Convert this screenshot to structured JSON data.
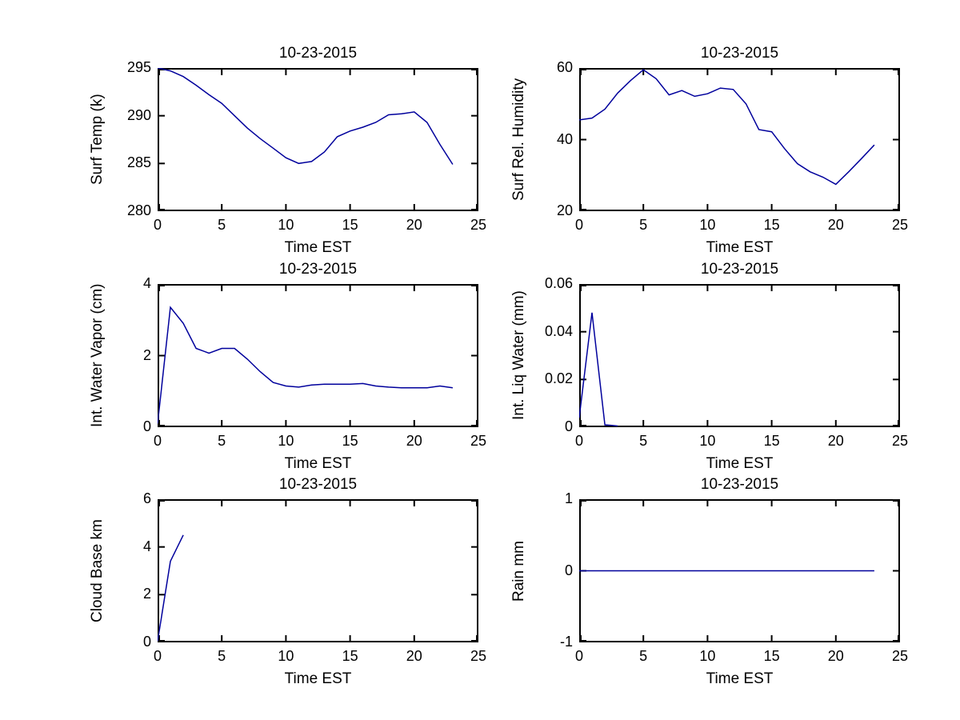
{
  "figure": {
    "background": "#ffffff",
    "line_color": "#00009c",
    "axis_color": "#000000",
    "date": "10-23-2015"
  },
  "chart_data": [
    {
      "type": "line",
      "title": "10-23-2015",
      "xlabel": "Time EST",
      "ylabel": "Surf Temp (k)",
      "xlim": [
        0,
        25
      ],
      "ylim": [
        280,
        295
      ],
      "xticks": [
        0,
        5,
        10,
        15,
        20,
        25
      ],
      "yticks": [
        280,
        285,
        290,
        295
      ],
      "grid": false,
      "legend": null,
      "x": [
        0,
        1,
        2,
        3,
        4,
        5,
        6,
        7,
        8,
        9,
        10,
        11,
        12,
        13,
        14,
        15,
        16,
        17,
        18,
        19,
        20,
        21,
        22,
        23
      ],
      "y": [
        295.0,
        294.7,
        294.1,
        293.2,
        292.2,
        291.3,
        290.0,
        288.7,
        287.6,
        286.6,
        285.6,
        285.0,
        285.2,
        286.2,
        287.8,
        288.4,
        288.8,
        289.3,
        290.1,
        290.2,
        290.4,
        289.3,
        287.0,
        284.9
      ]
    },
    {
      "type": "line",
      "title": "10-23-2015",
      "xlabel": "Time EST",
      "ylabel": "Surf Rel. Humidity",
      "xlim": [
        0,
        25
      ],
      "ylim": [
        20,
        60
      ],
      "xticks": [
        0,
        5,
        10,
        15,
        20,
        25
      ],
      "yticks": [
        20,
        40,
        60
      ],
      "grid": false,
      "legend": null,
      "x": [
        0,
        1,
        2,
        3,
        4,
        5,
        6,
        7,
        8,
        9,
        10,
        11,
        12,
        13,
        14,
        15,
        16,
        17,
        18,
        19,
        20,
        21,
        22,
        23
      ],
      "y": [
        45.5,
        46.0,
        48.5,
        53.0,
        56.5,
        59.5,
        57.0,
        52.5,
        53.7,
        52.1,
        52.8,
        54.4,
        54.0,
        50.0,
        42.8,
        42.2,
        37.5,
        33.3,
        31.0,
        29.5,
        27.5,
        31.0,
        34.7,
        38.5
      ]
    },
    {
      "type": "line",
      "title": "10-23-2015",
      "xlabel": "Time EST",
      "ylabel": "Int. Water Vapor (cm)",
      "xlim": [
        0,
        25
      ],
      "ylim": [
        0,
        4
      ],
      "xticks": [
        0,
        5,
        10,
        15,
        20,
        25
      ],
      "yticks": [
        0,
        2,
        4
      ],
      "grid": false,
      "legend": null,
      "x": [
        0,
        1,
        2,
        3,
        4,
        5,
        6,
        7,
        8,
        9,
        10,
        11,
        12,
        13,
        14,
        15,
        16,
        17,
        18,
        19,
        20,
        21,
        22,
        23
      ],
      "y": [
        0.1,
        3.35,
        2.9,
        2.2,
        2.07,
        2.2,
        2.2,
        1.9,
        1.55,
        1.25,
        1.15,
        1.12,
        1.18,
        1.2,
        1.2,
        1.2,
        1.22,
        1.15,
        1.12,
        1.1,
        1.1,
        1.1,
        1.15,
        1.1
      ]
    },
    {
      "type": "line",
      "title": "10-23-2015",
      "xlabel": "Time EST",
      "ylabel": "Int. Liq Water (mm)",
      "xlim": [
        0,
        25
      ],
      "ylim": [
        0,
        0.06
      ],
      "xticks": [
        0,
        5,
        10,
        15,
        20,
        25
      ],
      "yticks": [
        0,
        0.02,
        0.04,
        0.06
      ],
      "grid": false,
      "legend": null,
      "x": [
        0,
        1,
        2,
        3
      ],
      "y": [
        0.004,
        0.048,
        0.001,
        0.0005
      ]
    },
    {
      "type": "line",
      "title": "10-23-2015",
      "xlabel": "Time EST",
      "ylabel": "Cloud Base km",
      "xlim": [
        0,
        25
      ],
      "ylim": [
        0,
        6
      ],
      "xticks": [
        0,
        5,
        10,
        15,
        20,
        25
      ],
      "yticks": [
        0,
        2,
        4,
        6
      ],
      "grid": false,
      "legend": null,
      "x": [
        0,
        1,
        2
      ],
      "y": [
        0.05,
        3.4,
        4.5
      ]
    },
    {
      "type": "line",
      "title": "10-23-2015",
      "xlabel": "Time EST",
      "ylabel": "Rain mm",
      "xlim": [
        0,
        25
      ],
      "ylim": [
        -1,
        1
      ],
      "xticks": [
        0,
        5,
        10,
        15,
        20,
        25
      ],
      "yticks": [
        -1,
        0,
        1
      ],
      "grid": false,
      "legend": null,
      "x": [
        0,
        1,
        2,
        3,
        4,
        5,
        6,
        7,
        8,
        9,
        10,
        11,
        12,
        13,
        14,
        15,
        16,
        17,
        18,
        19,
        20,
        21,
        22,
        23
      ],
      "y": [
        0,
        0,
        0,
        0,
        0,
        0,
        0,
        0,
        0,
        0,
        0,
        0,
        0,
        0,
        0,
        0,
        0,
        0,
        0,
        0,
        0,
        0,
        0,
        0
      ]
    }
  ]
}
